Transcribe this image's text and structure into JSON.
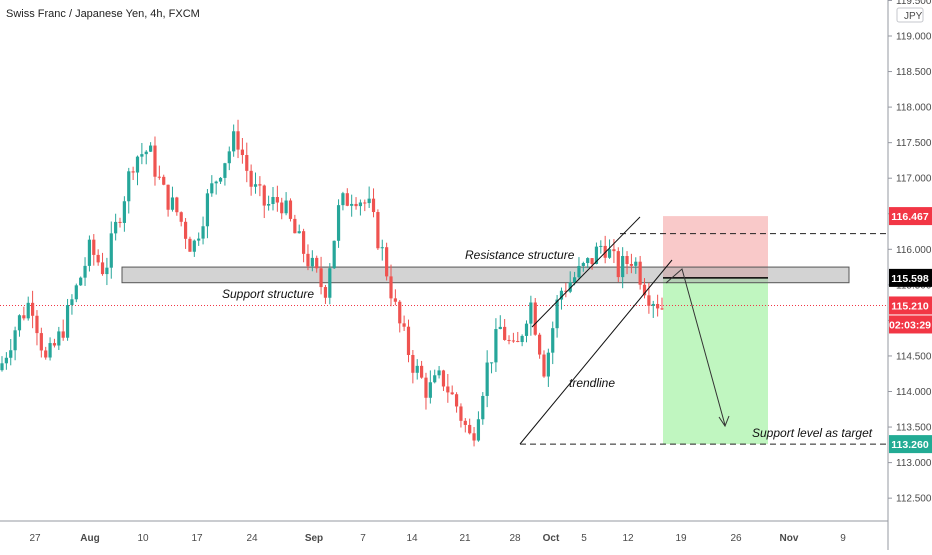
{
  "header": {
    "title": "Swiss Franc / Japanese Yen, 4h, FXCM"
  },
  "price_axis": {
    "currency": "JPY",
    "ticks": [
      "119.500",
      "119.000",
      "118.500",
      "118.000",
      "117.500",
      "117.000",
      "116.500",
      "116.000",
      "115.500",
      "115.000",
      "114.500",
      "114.000",
      "113.500",
      "113.000",
      "112.500"
    ],
    "tick_values": [
      119.5,
      119.0,
      118.5,
      118.0,
      117.5,
      117.0,
      116.5,
      116.0,
      115.5,
      115.0,
      114.5,
      114.0,
      113.5,
      113.0,
      112.5
    ]
  },
  "time_axis": {
    "labels": [
      "27",
      "Aug",
      "10",
      "17",
      "24",
      "Sep",
      "7",
      "14",
      "21",
      "28",
      "Oct",
      "5",
      "12",
      "19",
      "26",
      "Nov",
      "9"
    ],
    "bold": [
      "Aug",
      "Sep",
      "Oct",
      "Nov"
    ]
  },
  "badges": {
    "stop": {
      "text": "116.467",
      "color": "#f23645"
    },
    "entry": {
      "text": "115.598",
      "color": "#000000"
    },
    "last": {
      "text": "115.210",
      "color": "#f23645"
    },
    "countdown": {
      "text": "02:03:29",
      "color": "#f23645"
    },
    "target": {
      "text": "113.260",
      "color": "#22ab94"
    }
  },
  "annotations": {
    "resistance": "Resistance structure",
    "support": "Support structure",
    "trendline": "trendline",
    "target": "Support level as target"
  },
  "levels": {
    "stop": 116.467,
    "entry": 115.598,
    "last": 115.21,
    "target": 113.26,
    "resistance_line": 116.22,
    "zone_top": 115.75,
    "zone_bottom": 115.53
  },
  "chart_data": {
    "type": "candlestick",
    "title": "Swiss Franc / Japanese Yen, 4h, FXCM",
    "xlabel": "",
    "ylabel": "",
    "ylim": [
      112.15,
      119.65
    ],
    "y_unit": "JPY",
    "series_close_path": [
      [
        "Jul 24",
        114.4
      ],
      [
        "Jul 27",
        114.95
      ],
      [
        "Jul 29",
        115.3
      ],
      [
        "Jul 31",
        114.4
      ],
      [
        "Aug 3",
        114.8
      ],
      [
        "Aug 5",
        115.4
      ],
      [
        "Aug 7",
        116.0
      ],
      [
        "Aug 10",
        115.7
      ],
      [
        "Aug 12",
        116.5
      ],
      [
        "Aug 14",
        117.3
      ],
      [
        "Aug 17",
        117.4
      ],
      [
        "Aug 19",
        116.8
      ],
      [
        "Aug 21",
        116.5
      ],
      [
        "Aug 24",
        116.0
      ],
      [
        "Aug 26",
        116.7
      ],
      [
        "Aug 28",
        117.2
      ],
      [
        "Aug 31",
        117.6
      ],
      [
        "Sep 2",
        116.9
      ],
      [
        "Sep 4",
        116.6
      ],
      [
        "Sep 7",
        116.7
      ],
      [
        "Sep 9",
        116.2
      ],
      [
        "Sep 10",
        115.8
      ],
      [
        "Sep 11",
        115.4
      ],
      [
        "Sep 13",
        116.6
      ],
      [
        "Sep 14",
        116.8
      ],
      [
        "Sep 16",
        116.6
      ],
      [
        "Sep 18",
        115.9
      ],
      [
        "Sep 20",
        115.0
      ],
      [
        "Sep 22",
        114.4
      ],
      [
        "Sep 24",
        114.0
      ],
      [
        "Sep 25",
        114.2
      ],
      [
        "Sep 28",
        113.8
      ],
      [
        "Sep 29",
        113.3
      ],
      [
        "Sep 30",
        114.3
      ],
      [
        "Oct 1",
        114.9
      ],
      [
        "Oct 2",
        114.5
      ],
      [
        "Oct 5",
        115.3
      ],
      [
        "Oct 6",
        114.3
      ],
      [
        "Oct 7",
        115.4
      ],
      [
        "Oct 9",
        115.6
      ],
      [
        "Oct 11",
        115.8
      ],
      [
        "Oct 12",
        116.1
      ],
      [
        "Oct 13",
        115.7
      ],
      [
        "Oct 14",
        115.9
      ],
      [
        "Oct 15",
        115.4
      ],
      [
        "Oct 16",
        115.2
      ]
    ],
    "position": {
      "type": "short",
      "entry": 115.598,
      "stop": 116.467,
      "target": 113.26
    },
    "zones": [
      {
        "name": "Resistance structure / Support structure",
        "from": 115.53,
        "to": 115.75
      }
    ]
  }
}
